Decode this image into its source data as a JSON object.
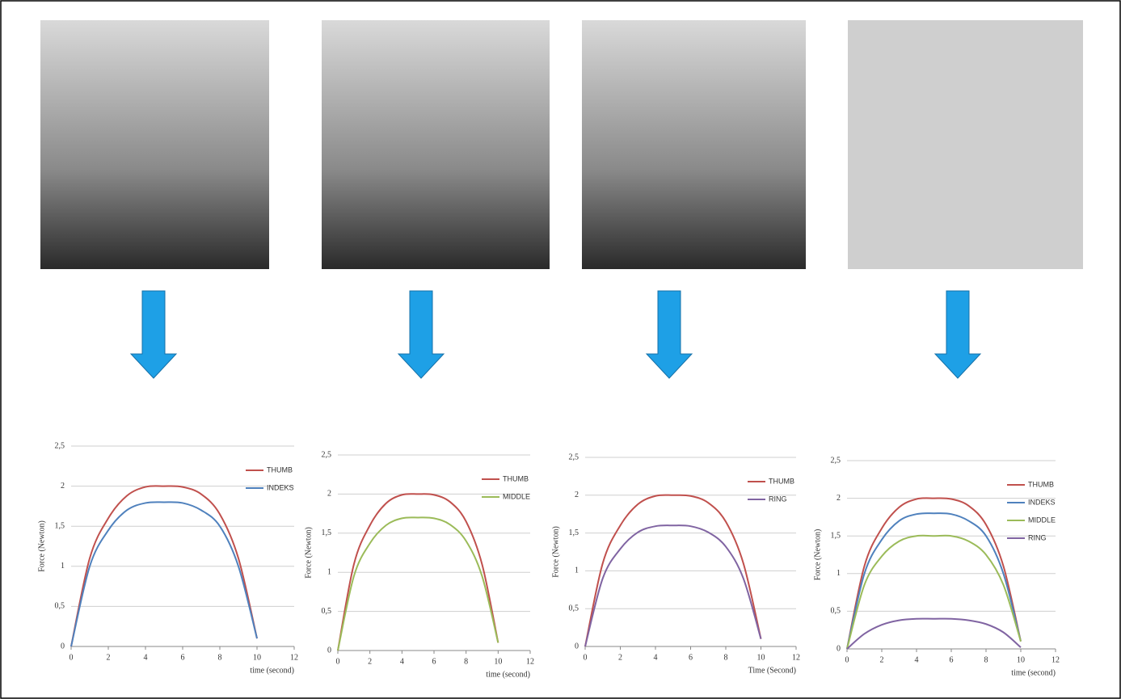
{
  "chart_data": [
    {
      "type": "line",
      "ylabel": "Force (Newton)",
      "xlabel": "time (second)",
      "x": [
        0,
        1,
        2,
        3,
        4,
        5,
        6,
        7,
        8,
        9,
        10
      ],
      "xlim": [
        0,
        12
      ],
      "xticks": [
        0,
        2,
        4,
        6,
        8,
        10,
        12
      ],
      "ylim": [
        0,
        2.5
      ],
      "yticks": [
        0,
        {
          "value": 0.5,
          "label": "0,5"
        },
        1,
        {
          "value": 1.5,
          "label": "1,5"
        },
        2,
        {
          "value": 2.5,
          "label": "2,5"
        }
      ],
      "grid": true,
      "series": [
        {
          "name": "THUMB",
          "color": "#c0504d",
          "values": [
            0,
            1.1,
            1.6,
            1.88,
            1.99,
            2.0,
            1.99,
            1.9,
            1.65,
            1.1,
            0.1
          ]
        },
        {
          "name": "INDEKS",
          "color": "#4f81bd",
          "values": [
            0,
            1.0,
            1.45,
            1.7,
            1.79,
            1.8,
            1.79,
            1.7,
            1.5,
            1.0,
            0.1
          ]
        }
      ]
    },
    {
      "type": "line",
      "ylabel": "Force (Newton)",
      "xlabel": "time (second)",
      "x": [
        0,
        1,
        2,
        3,
        4,
        5,
        6,
        7,
        8,
        9,
        10
      ],
      "xlim": [
        0,
        12
      ],
      "xticks": [
        0,
        2,
        4,
        6,
        8,
        10,
        12
      ],
      "ylim": [
        0,
        2.5
      ],
      "yticks": [
        0,
        {
          "value": 0.5,
          "label": "0,5"
        },
        1,
        {
          "value": 1.5,
          "label": "1,5"
        },
        2,
        {
          "value": 2.5,
          "label": "2,5"
        }
      ],
      "grid": true,
      "series": [
        {
          "name": "THUMB",
          "color": "#c0504d",
          "values": [
            0,
            1.1,
            1.6,
            1.88,
            1.99,
            2.0,
            1.99,
            1.9,
            1.65,
            1.1,
            0.1
          ]
        },
        {
          "name": "MIDDLE",
          "color": "#9bbb59",
          "values": [
            0,
            0.95,
            1.37,
            1.6,
            1.69,
            1.7,
            1.69,
            1.61,
            1.4,
            0.95,
            0.1
          ]
        }
      ]
    },
    {
      "type": "line",
      "ylabel": "Force (Newton)",
      "xlabel": "Time (Second)",
      "x": [
        0,
        1,
        2,
        3,
        4,
        5,
        6,
        7,
        8,
        9,
        10
      ],
      "xlim": [
        0,
        12
      ],
      "xticks": [
        0,
        2,
        4,
        6,
        8,
        10,
        12
      ],
      "ylim": [
        0,
        2.5
      ],
      "yticks": [
        0,
        {
          "value": 0.5,
          "label": "0,5"
        },
        1,
        {
          "value": 1.5,
          "label": "1,5"
        },
        2,
        {
          "value": 2.5,
          "label": "2,5"
        }
      ],
      "grid": true,
      "series": [
        {
          "name": "THUMB",
          "color": "#c0504d",
          "values": [
            0,
            1.1,
            1.6,
            1.88,
            1.99,
            2.0,
            1.99,
            1.9,
            1.65,
            1.1,
            0.1
          ]
        },
        {
          "name": "RING",
          "color": "#8064a2",
          "values": [
            0,
            0.9,
            1.29,
            1.51,
            1.59,
            1.6,
            1.59,
            1.51,
            1.32,
            0.9,
            0.1
          ]
        }
      ]
    },
    {
      "type": "line",
      "ylabel": "Force (Newton)",
      "xlabel": "time (second)",
      "x": [
        0,
        1,
        2,
        3,
        4,
        5,
        6,
        7,
        8,
        9,
        10
      ],
      "xlim": [
        0,
        12
      ],
      "xticks": [
        0,
        2,
        4,
        6,
        8,
        10,
        12
      ],
      "ylim": [
        0,
        2.5
      ],
      "yticks": [
        0,
        {
          "value": 0.5,
          "label": "0,5"
        },
        1,
        {
          "value": 1.5,
          "label": "1,5"
        },
        2,
        {
          "value": 2.5,
          "label": "2,5"
        }
      ],
      "grid": true,
      "series": [
        {
          "name": "THUMB",
          "color": "#c0504d",
          "values": [
            0,
            1.1,
            1.6,
            1.88,
            1.99,
            2.0,
            1.99,
            1.9,
            1.65,
            1.1,
            0.1
          ]
        },
        {
          "name": "INDEKS",
          "color": "#4f81bd",
          "values": [
            0,
            1.0,
            1.45,
            1.7,
            1.79,
            1.8,
            1.79,
            1.7,
            1.5,
            1.0,
            0.1
          ]
        },
        {
          "name": "MIDDLE",
          "color": "#9bbb59",
          "values": [
            0,
            0.85,
            1.23,
            1.43,
            1.5,
            1.5,
            1.5,
            1.43,
            1.25,
            0.85,
            0.1
          ]
        },
        {
          "name": "RING",
          "color": "#8064a2",
          "values": [
            0,
            0.2,
            0.32,
            0.38,
            0.4,
            0.4,
            0.4,
            0.38,
            0.33,
            0.22,
            0.02
          ]
        }
      ]
    }
  ]
}
